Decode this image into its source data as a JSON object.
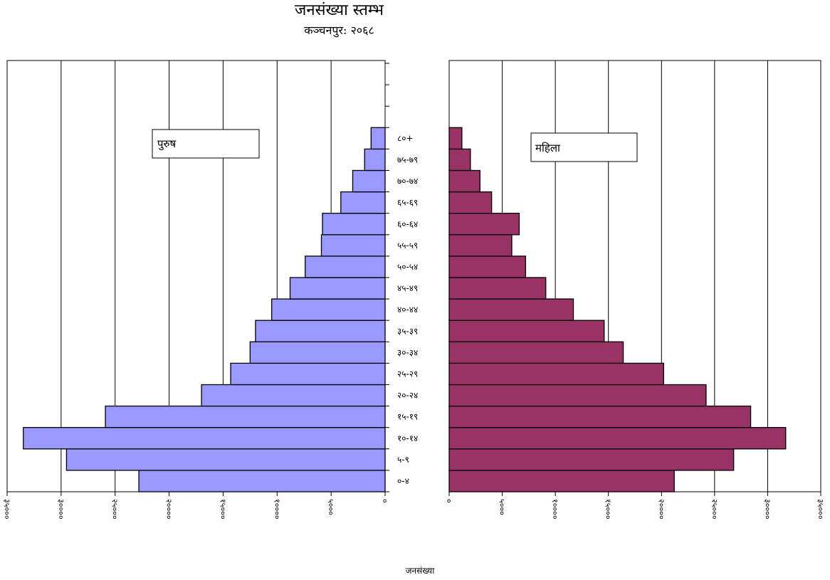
{
  "chart_data": {
    "type": "bar",
    "orientation": "horizontal",
    "title": "जनसंख्या स्तम्भ",
    "subtitle": "कञ्चनपुर: २०६८",
    "xlabel": "जनसंख्या",
    "categories": [
      "०-४",
      "५-९",
      "१०-१४",
      "१५-१९",
      "२०-२४",
      "२५-२९",
      "३०-३४",
      "३५-३९",
      "४०-४४",
      "४५-४९",
      "५०-५४",
      "५५-५९",
      "६०-६४",
      "६५-६९",
      "७०-७४",
      "७५-७९",
      "८०+"
    ],
    "series": [
      {
        "name": "पुरुष",
        "color": "#9999ff",
        "values": [
          22800,
          29500,
          33500,
          25900,
          17000,
          14300,
          12500,
          12000,
          10500,
          8800,
          7400,
          5900,
          5800,
          4100,
          3000,
          1900,
          1300
        ]
      },
      {
        "name": "महिला",
        "color": "#993366",
        "values": [
          21200,
          26800,
          31700,
          28400,
          24200,
          20200,
          16400,
          14600,
          11700,
          9100,
          7200,
          5900,
          6600,
          4000,
          2900,
          2000,
          1200
        ]
      }
    ],
    "xlim": [
      0,
      35000
    ],
    "ticks": [
      0,
      5000,
      10000,
      15000,
      20000,
      25000,
      30000,
      35000
    ],
    "tick_labels": [
      "०",
      "५०००",
      "१००००",
      "१५०००",
      "२००००",
      "२५०००",
      "३००००",
      "३५०००"
    ],
    "grid": true,
    "legend": [
      "पुरुष",
      "महिला"
    ]
  }
}
